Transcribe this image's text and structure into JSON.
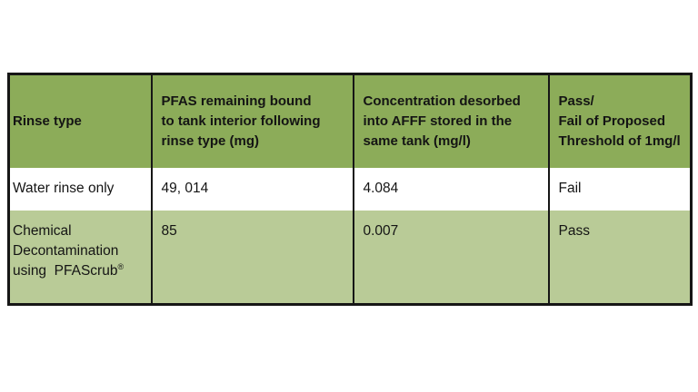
{
  "colors": {
    "header_green": "#8CAC59",
    "row_alt_green": "#B9CB97",
    "border_black": "#161616",
    "text": "#141414",
    "page_background": "#FFFFFF"
  },
  "table": {
    "header": {
      "cells": [
        "Rinse type",
        "PFAS remaining bound\nto tank interior following\nrinse type (mg)",
        "Concentration desorbed\ninto AFFF stored in the\nsame tank (mg/l)",
        "Pass/\nFail of Proposed\nThreshold of 1mg/l"
      ]
    },
    "rows": [
      {
        "cells": [
          "Water rinse only",
          "49, 014",
          "4.084",
          "Fail"
        ]
      },
      {
        "cells": [
          "Chemical\nDecontamination\nusing  PFAScrub",
          "85",
          "0.007",
          "Pass"
        ],
        "trademark_suffix": "®"
      }
    ]
  },
  "chart_data": {
    "type": "table",
    "title": "",
    "columns": [
      "Rinse type",
      "PFAS remaining bound to tank interior following rinse type (mg)",
      "Concentration desorbed into AFFF stored in the same tank (mg/l)",
      "Pass/Fail of Proposed Threshold of 1mg/l"
    ],
    "rows": [
      [
        "Water rinse only",
        "49, 014",
        "4.084",
        "Fail"
      ],
      [
        "Chemical Decontamination using PFAScrub®",
        "85",
        "0.007",
        "Pass"
      ]
    ]
  }
}
